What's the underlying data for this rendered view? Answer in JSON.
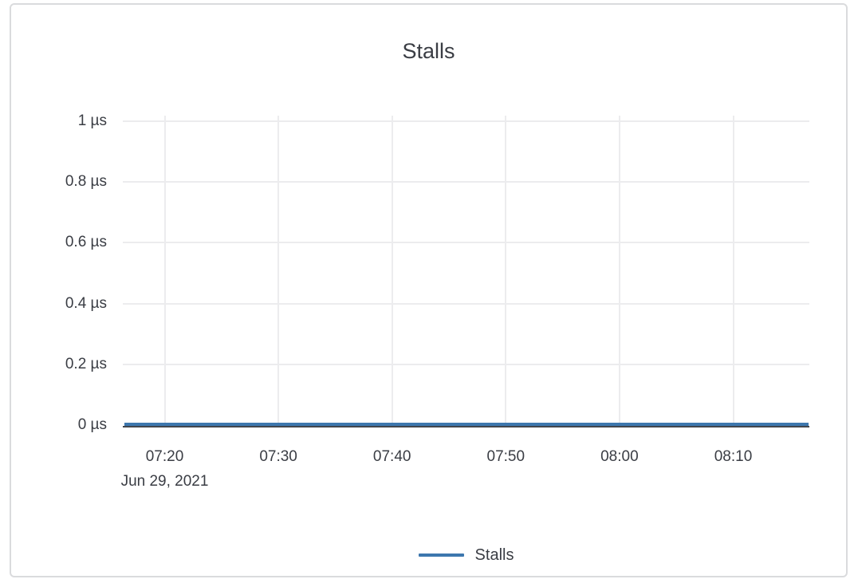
{
  "chart_data": {
    "type": "line",
    "title": "Stalls",
    "x_axis": {
      "tick_labels": [
        "07:20",
        "07:30",
        "07:40",
        "07:50",
        "08:00",
        "08:10"
      ],
      "date_label": "Jun 29, 2021",
      "range_description": "approx 07:16 to 08:17 on Jun 29, 2021"
    },
    "y_axis": {
      "tick_labels": [
        "1 µs",
        "0.8 µs",
        "0.6 µs",
        "0.4 µs",
        "0.2 µs",
        "0 µs"
      ],
      "tick_values": [
        1,
        0.8,
        0.6,
        0.4,
        0.2,
        0
      ],
      "unit": "µs",
      "ylim": [
        0,
        1
      ]
    },
    "series": [
      {
        "name": "Stalls",
        "color": "#3d77ae",
        "x": [
          "07:20",
          "07:30",
          "07:40",
          "07:50",
          "08:00",
          "08:10"
        ],
        "values": [
          0,
          0,
          0,
          0,
          0,
          0
        ],
        "note": "flat line at 0 µs across the entire visible time window"
      }
    ],
    "grid": true,
    "legend": {
      "position": "bottom",
      "entries": [
        {
          "label": "Stalls",
          "color": "#3d77ae"
        }
      ]
    }
  },
  "colors": {
    "background": "#ffffff",
    "card_border": "#dadbdd",
    "text": "#3a3d44",
    "gridline": "#ececee",
    "axis_line": "#43464d",
    "series_blue": "#3d77ae"
  }
}
